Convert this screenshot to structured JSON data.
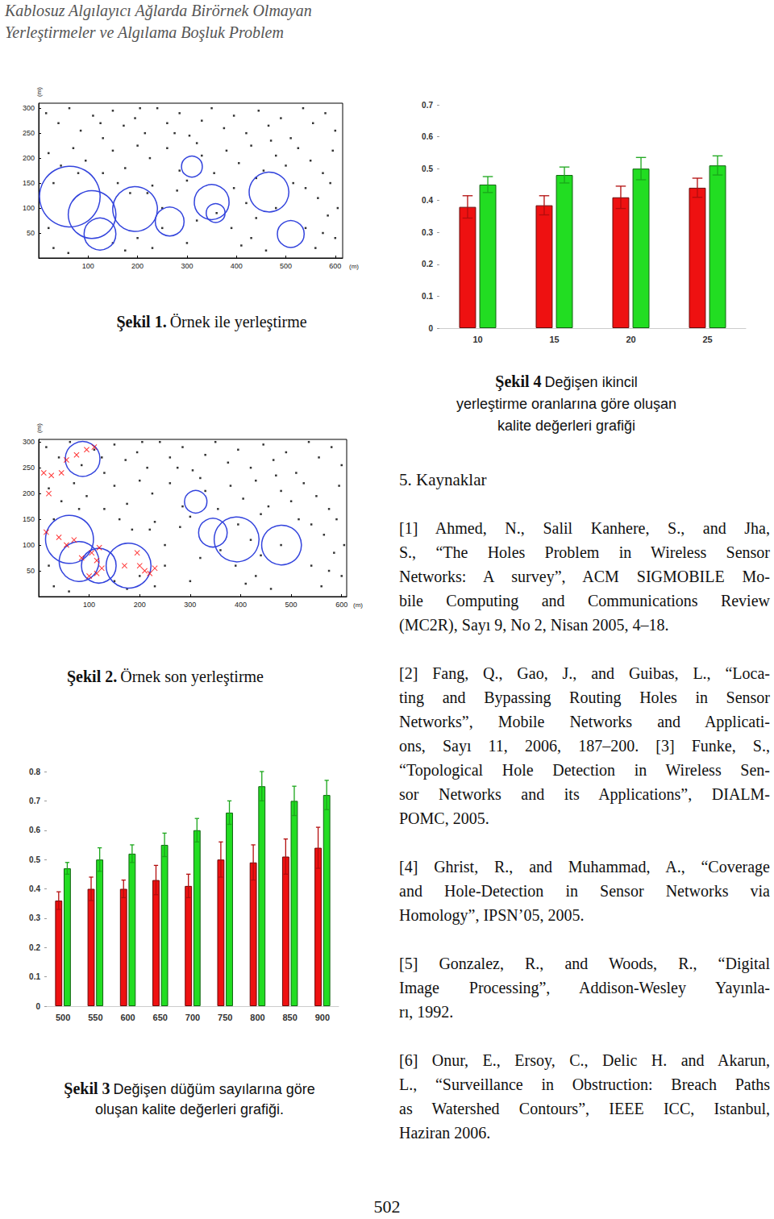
{
  "header": {
    "lines": [
      "Kablosuz Algılayıcı Ağlarda Birörnek Olmayan",
      "Yerleştirmeler ve Algılama Boşluk Problem"
    ]
  },
  "chart_data": [
    {
      "type": "scatter",
      "x_label": "(m)",
      "y_label": "(m)",
      "xlim": [
        0,
        615
      ],
      "ylim": [
        0,
        310
      ],
      "xticks": [
        100,
        200,
        300,
        400,
        500,
        600
      ],
      "yticks": [
        50,
        100,
        150,
        200,
        250,
        300
      ],
      "grid": false,
      "series": [
        {
          "type": "scatter",
          "color": "#000000",
          "marker": "square",
          "x": [
            15,
            40,
            62,
            85,
            110,
            130,
            150,
            172,
            195,
            215,
            240,
            260,
            285,
            305,
            330,
            350,
            375,
            395,
            420,
            445,
            465,
            490,
            510,
            535,
            555,
            580,
            600,
            20,
            45,
            70,
            95,
            150,
            175,
            200,
            225,
            260,
            285,
            330,
            355,
            380,
            405,
            430,
            455,
            480,
            500,
            525,
            550,
            575,
            595,
            30,
            160,
            185,
            230,
            280,
            300,
            395,
            420,
            440,
            540,
            565,
            590,
            605,
            20,
            30,
            60,
            150,
            175,
            200,
            230,
            250,
            300,
            320,
            390,
            410,
            440,
            460,
            540,
            560,
            585,
            600,
            430,
            250,
            220,
            575,
            125,
            205,
            320,
            470,
            515,
            360,
            480,
            130,
            80,
            275
          ],
          "y": [
            290,
            270,
            300,
            255,
            285,
            240,
            295,
            265,
            280,
            250,
            300,
            270,
            290,
            245,
            275,
            300,
            260,
            285,
            250,
            295,
            265,
            280,
            240,
            300,
            270,
            290,
            255,
            210,
            185,
            220,
            195,
            215,
            180,
            225,
            200,
            220,
            175,
            205,
            170,
            215,
            190,
            225,
            175,
            205,
            185,
            220,
            195,
            170,
            215,
            150,
            150,
            130,
            145,
            135,
            155,
            140,
            110,
            160,
            140,
            120,
            150,
            100,
            60,
            20,
            10,
            30,
            15,
            40,
            20,
            60,
            30,
            75,
            60,
            25,
            80,
            15,
            60,
            20,
            85,
            40,
            40,
            100,
            130,
            50,
            270,
            300,
            230,
            235,
            150,
            90,
            100,
            170,
            170,
            250
          ]
        }
      ],
      "holes": {
        "color": "#3344dd",
        "x": [
          63,
          108,
          124,
          195,
          265,
          310,
          350,
          358,
          466,
          510
        ],
        "y": [
          123,
          87,
          48,
          98,
          73,
          183,
          112,
          90,
          132,
          48
        ],
        "r": [
          61,
          48,
          32,
          45,
          29,
          21,
          35,
          19,
          40,
          27
        ]
      }
    },
    {
      "type": "scatter",
      "x_label": "(m)",
      "y_label": "(m)",
      "xlim": [
        0,
        610
      ],
      "ylim": [
        0,
        305
      ],
      "xticks": [
        100,
        200,
        300,
        400,
        500,
        600
      ],
      "yticks": [
        50,
        100,
        150,
        200,
        250,
        300
      ],
      "grid": false,
      "series": [
        {
          "type": "scatter",
          "color": "#000000",
          "marker": "square",
          "x": [
            15,
            40,
            62,
            85,
            110,
            130,
            150,
            172,
            195,
            215,
            240,
            260,
            285,
            305,
            330,
            350,
            375,
            395,
            420,
            445,
            465,
            490,
            510,
            535,
            555,
            580,
            600,
            20,
            45,
            70,
            95,
            150,
            175,
            200,
            225,
            260,
            285,
            330,
            355,
            380,
            405,
            430,
            455,
            480,
            500,
            525,
            550,
            575,
            595,
            30,
            160,
            185,
            230,
            280,
            300,
            395,
            420,
            440,
            540,
            565,
            590,
            605,
            20,
            30,
            60,
            150,
            175,
            200,
            230,
            250,
            300,
            320,
            390,
            410,
            440,
            460,
            540,
            560,
            585,
            600,
            430,
            250,
            220,
            575,
            125,
            205,
            320,
            470,
            515,
            360,
            480,
            130,
            80,
            275
          ],
          "y": [
            290,
            270,
            300,
            255,
            285,
            240,
            295,
            265,
            280,
            250,
            300,
            270,
            290,
            245,
            275,
            300,
            260,
            285,
            250,
            295,
            265,
            280,
            240,
            300,
            270,
            290,
            255,
            210,
            185,
            220,
            195,
            215,
            180,
            225,
            200,
            220,
            175,
            205,
            170,
            215,
            190,
            225,
            175,
            205,
            185,
            220,
            195,
            170,
            215,
            150,
            150,
            130,
            145,
            135,
            155,
            140,
            110,
            160,
            140,
            120,
            150,
            100,
            60,
            20,
            10,
            30,
            15,
            40,
            20,
            60,
            30,
            75,
            60,
            25,
            80,
            15,
            60,
            20,
            85,
            40,
            40,
            100,
            130,
            50,
            270,
            300,
            230,
            235,
            150,
            90,
            100,
            170,
            170,
            250
          ]
        },
        {
          "type": "scatter",
          "color": "#ff0000",
          "marker": "x",
          "x": [
            10,
            25,
            45,
            55,
            75,
            95,
            110,
            20,
            15,
            40,
            55,
            70,
            85,
            105,
            115,
            120,
            125,
            115,
            100,
            200,
            210,
            220,
            230,
            195,
            170
          ],
          "y": [
            240,
            235,
            240,
            265,
            275,
            285,
            290,
            200,
            125,
            115,
            100,
            110,
            75,
            85,
            70,
            95,
            55,
            45,
            40,
            60,
            50,
            45,
            55,
            85,
            60
          ]
        }
      ],
      "holes": {
        "color": "#3344dd",
        "x": [
          87,
          61,
          80,
          119,
          178,
          311,
          345,
          392,
          481
        ],
        "y": [
          267,
          111,
          68,
          60,
          60,
          184,
          124,
          111,
          100
        ],
        "r": [
          34,
          47,
          39,
          34,
          44,
          22,
          28,
          44,
          39
        ]
      }
    },
    {
      "type": "bar",
      "categories": [
        "500",
        "550",
        "600",
        "650",
        "700",
        "750",
        "800",
        "850",
        "900"
      ],
      "ylim": [
        0,
        0.8
      ],
      "yticks": [
        0,
        0.1,
        0.2,
        0.3,
        0.4,
        0.5,
        0.6,
        0.7,
        0.8
      ],
      "grid": false,
      "series": [
        {
          "color": "#ee1111",
          "values": [
            0.36,
            0.4,
            0.4,
            0.43,
            0.41,
            0.5,
            0.49,
            0.51,
            0.54
          ],
          "errors": [
            0.03,
            0.04,
            0.03,
            0.05,
            0.04,
            0.06,
            0.06,
            0.06,
            0.07
          ]
        },
        {
          "color": "#22dd22",
          "values": [
            0.47,
            0.5,
            0.52,
            0.55,
            0.6,
            0.66,
            0.75,
            0.7,
            0.72
          ],
          "errors": [
            0.02,
            0.04,
            0.03,
            0.04,
            0.04,
            0.04,
            0.05,
            0.05,
            0.05
          ]
        }
      ]
    },
    {
      "type": "bar",
      "categories": [
        "10",
        "15",
        "20",
        "25"
      ],
      "ylim": [
        0,
        0.7
      ],
      "yticks": [
        0,
        0.1,
        0.2,
        0.3,
        0.4,
        0.5,
        0.6,
        0.7
      ],
      "grid": false,
      "series": [
        {
          "color": "#ee1111",
          "values": [
            0.38,
            0.385,
            0.41,
            0.44
          ],
          "errors": [
            0.035,
            0.03,
            0.035,
            0.03
          ]
        },
        {
          "color": "#22dd22",
          "values": [
            0.45,
            0.48,
            0.5,
            0.51
          ],
          "errors": [
            0.025,
            0.025,
            0.035,
            0.03
          ]
        }
      ]
    }
  ],
  "figure_captions": [
    {
      "label": "Şekil 1.",
      "lines": [
        "Örnek ile yerleştirme"
      ]
    },
    {
      "label": "Şekil 2.",
      "lines": [
        "Örnek son yerleştirme"
      ]
    },
    {
      "label": "Şekil 3",
      "lines": [
        "Değişen düğüm sayılarına göre",
        "oluşan kalite değerleri grafiği."
      ]
    },
    {
      "label": "Şekil 4",
      "lines": [
        "Değişen ikincil",
        "yerleştirme oranlarına göre oluşan",
        "kalite değerleri grafiği"
      ]
    }
  ],
  "references": {
    "title": "5. Kaynaklar",
    "entries": [
      {
        "lines": [
          "[1] Ahmed, N., Salil Kanhere, S., and Jha,",
          "S., “The Holes Problem in Wireless Sensor",
          "Networks: A survey”, ACM SIGMOBILE Mo-",
          "bile Computing and Communications Review",
          "(MC2R), Sayı 9, No 2, Nisan 2005, 4–18."
        ]
      },
      {
        "lines": [
          "[2] Fang, Q., Gao, J., and Guibas, L., “Loca-",
          "ting and Bypassing Routing Holes in Sensor",
          "Networks”, Mobile Networks and Applicati-",
          "ons, Sayı 11, 2006, 187–200. [3] Funke, S.,",
          "“Topological Hole Detection in Wireless Sen-",
          "sor Networks and its Applications”, DIALM-",
          "POMC, 2005."
        ]
      },
      {
        "lines": [
          "[4] Ghrist, R., and Muhammad, A., “Coverage",
          "and Hole-Detection in Sensor Networks via",
          "Homology”, IPSN’05, 2005."
        ]
      },
      {
        "lines": [
          "[5] Gonzalez, R., and Woods, R., “Digital",
          "Image Processing”, Addison-Wesley Yayınla-",
          "rı, 1992."
        ]
      },
      {
        "lines": [
          "[6] Onur, E., Ersoy, C., Delic H. and Akarun,",
          "L., “Surveillance in Obstruction: Breach Paths",
          "as Watershed Contours”, IEEE ICC, Istanbul,",
          "Haziran 2006."
        ]
      }
    ]
  },
  "page_number": "502"
}
